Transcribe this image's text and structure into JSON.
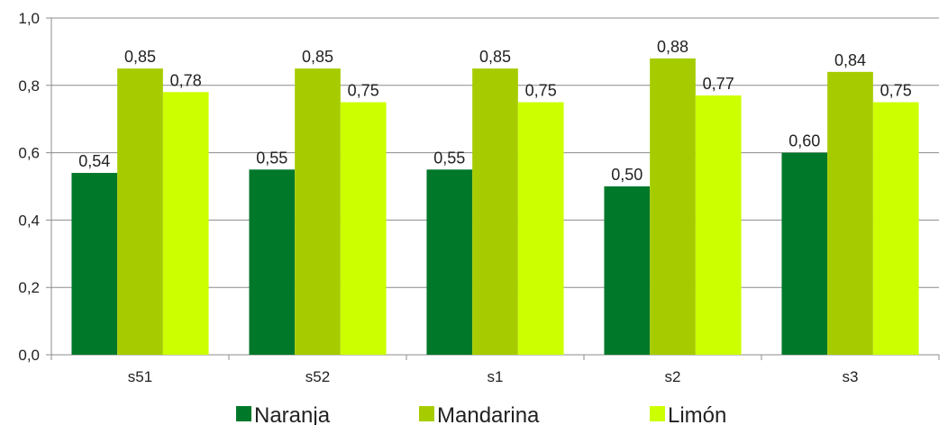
{
  "chart_data": {
    "type": "bar",
    "categories": [
      "s51",
      "s52",
      "s1",
      "s2",
      "s3"
    ],
    "series": [
      {
        "name": "Naranja",
        "color": "#00782a",
        "values": [
          0.54,
          0.55,
          0.55,
          0.5,
          0.6
        ]
      },
      {
        "name": "Mandarina",
        "color": "#a6cc00",
        "values": [
          0.85,
          0.85,
          0.85,
          0.88,
          0.84
        ]
      },
      {
        "name": "Limón",
        "color": "#ccff00",
        "values": [
          0.78,
          0.75,
          0.75,
          0.77,
          0.75
        ]
      }
    ],
    "title": "",
    "xlabel": "",
    "ylabel": "",
    "ylim": [
      0,
      1.0
    ],
    "yticks": [
      "0,0",
      "0,2",
      "0,4",
      "0,6",
      "0,8",
      "1,0"
    ],
    "grid": true,
    "legend_position": "bottom",
    "decimal_separator": ","
  }
}
